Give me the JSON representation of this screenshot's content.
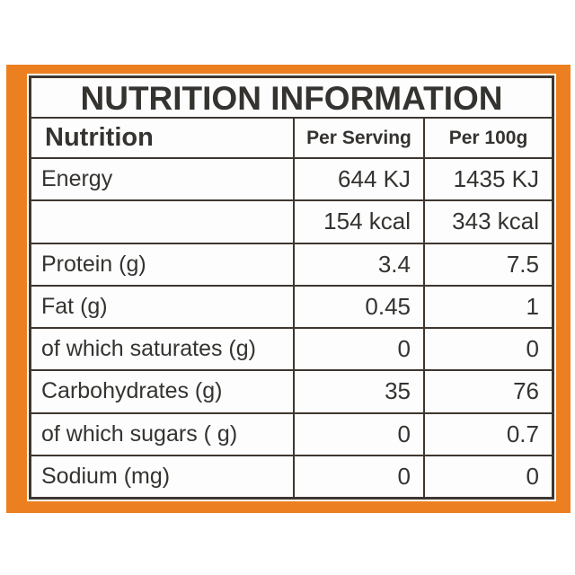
{
  "label": {
    "title": "NUTRITION INFORMATION",
    "accent_color": "#EC8021",
    "border_color": "#3E362F",
    "text_color": "#353330",
    "header": {
      "nutrition": "Nutrition",
      "per_serving": "Per Serving",
      "per_100g": "Per 100g"
    },
    "rows": [
      {
        "label": "Energy",
        "per_serving": "644 KJ",
        "per_100g": "1435 KJ"
      },
      {
        "label": "",
        "per_serving": "154 kcal",
        "per_100g": "343 kcal"
      },
      {
        "label": "Protein (g)",
        "per_serving": "3.4",
        "per_100g": "7.5"
      },
      {
        "label": "Fat (g)",
        "per_serving": "0.45",
        "per_100g": "1"
      },
      {
        "label": "of which saturates (g)",
        "per_serving": "0",
        "per_100g": "0"
      },
      {
        "label": "Carbohydrates (g)",
        "per_serving": "35",
        "per_100g": "76"
      },
      {
        "label": "of which sugars ( g)",
        "per_serving": "0",
        "per_100g": "0.7"
      },
      {
        "label": "Sodium (mg)",
        "per_serving": "0",
        "per_100g": "0"
      }
    ]
  }
}
